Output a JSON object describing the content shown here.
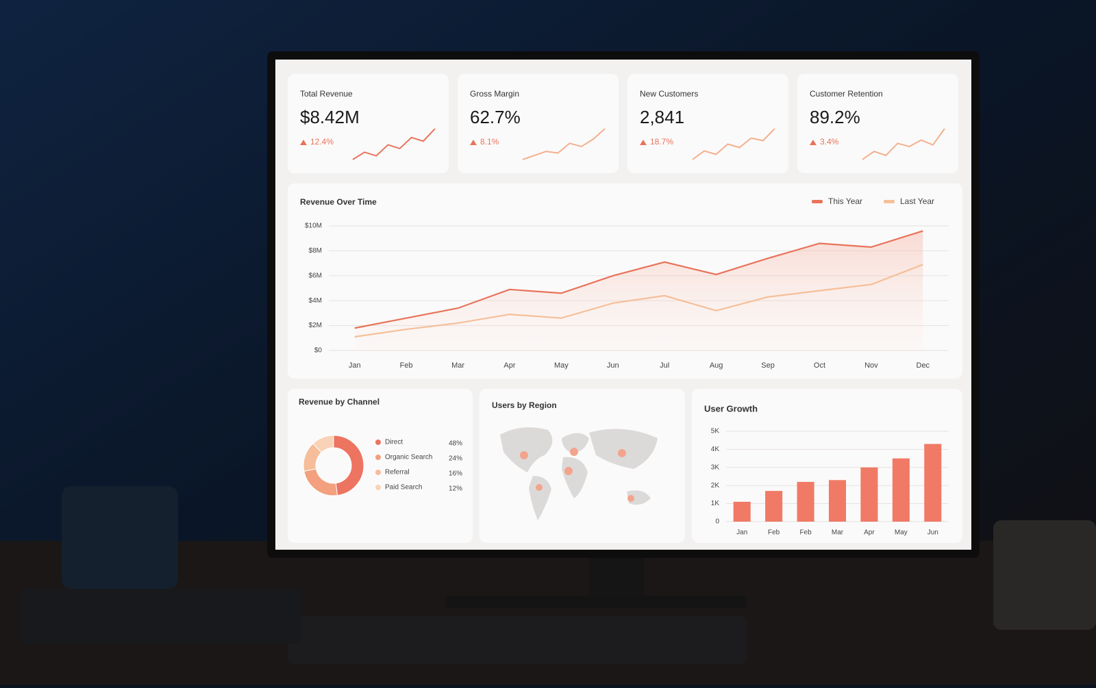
{
  "kpis": [
    {
      "label": "Total Revenue",
      "value": "$8.42M",
      "change": "12.4%",
      "trend": [
        2,
        3,
        2.5,
        4,
        3.5,
        5,
        4.5,
        6.2
      ]
    },
    {
      "label": "Gross Margin",
      "value": "62.7%",
      "change": "8.1%",
      "trend": [
        1,
        1.5,
        2,
        1.8,
        3,
        2.6,
        3.5,
        4.8
      ]
    },
    {
      "label": "New Customers",
      "value": "2,841",
      "change": "18.7%",
      "trend": [
        1,
        2,
        1.6,
        2.8,
        2.4,
        3.5,
        3.2,
        4.6
      ]
    },
    {
      "label": "Customer Retention",
      "value": "89.2%",
      "change": "3.4%",
      "trend": [
        1,
        2,
        1.5,
        3,
        2.6,
        3.4,
        2.8,
        4.8
      ]
    }
  ],
  "map": {
    "title": "Users by Region"
  },
  "chart_data": [
    {
      "type": "line",
      "title": "Revenue Over Time",
      "categories": [
        "Jan",
        "Feb",
        "Mar",
        "Apr",
        "May",
        "Jun",
        "Jul",
        "Aug",
        "Sep",
        "Oct",
        "Nov",
        "Dec"
      ],
      "series": [
        {
          "name": "This Year",
          "color": "#e8735a",
          "values": [
            1800000,
            2600000,
            3400000,
            4900000,
            4600000,
            6000000,
            7100000,
            6100000,
            7400000,
            8600000,
            8300000,
            9600000
          ]
        },
        {
          "name": "Last Year",
          "color": "#f5bf99",
          "values": [
            1100000,
            1700000,
            2200000,
            2900000,
            2600000,
            3800000,
            4400000,
            3200000,
            4300000,
            4800000,
            5300000,
            6900000
          ]
        }
      ],
      "ylim": [
        0,
        10000000
      ],
      "yticks": [
        {
          "value": 0,
          "label": "$0"
        },
        {
          "value": 2000000,
          "label": "$2M"
        },
        {
          "value": 4000000,
          "label": "$4M"
        },
        {
          "value": 6000000,
          "label": "$6M"
        },
        {
          "value": 8000000,
          "label": "$8M"
        },
        {
          "value": 10000000,
          "label": "$10M"
        }
      ],
      "grid": true
    },
    {
      "type": "pie",
      "title": "Revenue by Channel",
      "categories": [
        "Direct",
        "Organic Search",
        "Referral",
        "Paid Search"
      ],
      "values": [
        48,
        24,
        16,
        12
      ],
      "value_labels": [
        "48%",
        "24%",
        "16%",
        "12%"
      ],
      "colors": [
        "#ec7461",
        "#f2a07e",
        "#f5bd99",
        "#f8d3b8"
      ]
    },
    {
      "type": "bar",
      "title": "User Growth",
      "categories": [
        "Jan",
        "Feb",
        "Feb",
        "Mar",
        "Apr",
        "May",
        "Jun"
      ],
      "values": [
        1100,
        1700,
        2200,
        2300,
        3000,
        3500,
        4300
      ],
      "color": "#f07a66",
      "ylim": [
        0,
        5000
      ],
      "yticks": [
        0,
        {
          "value": 1000,
          "label": "1K"
        },
        {
          "value": 2000,
          "label": "2K"
        },
        {
          "value": 3000,
          "label": "3K"
        },
        {
          "value": 4000,
          "label": "4K"
        },
        {
          "value": 5000,
          "label": "5K"
        }
      ],
      "grid": true
    }
  ]
}
